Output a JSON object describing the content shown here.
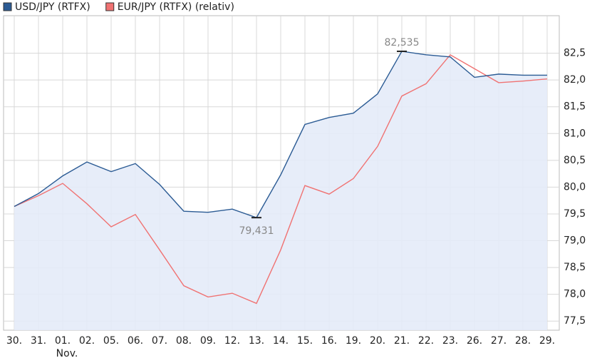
{
  "chart_data": {
    "type": "line",
    "categories": [
      "30.",
      "31.",
      "01.",
      "02.",
      "05.",
      "06.",
      "07.",
      "08.",
      "09.",
      "12.",
      "13.",
      "14.",
      "15.",
      "16.",
      "19.",
      "20.",
      "21.",
      "22.",
      "23.",
      "26.",
      "27.",
      "28.",
      "29."
    ],
    "x_sublabels": [
      null,
      null,
      "Nov.",
      null,
      null,
      null,
      null,
      null,
      null,
      null,
      null,
      null,
      null,
      null,
      null,
      null,
      null,
      null,
      null,
      null,
      null,
      null,
      null
    ],
    "series": [
      {
        "name": "USD/JPY (RTFX)",
        "color": "#2b5b94",
        "fill": "#e4ebf8",
        "values": [
          79.64,
          79.88,
          80.21,
          80.47,
          80.29,
          80.44,
          80.05,
          79.55,
          79.53,
          79.59,
          79.431,
          80.23,
          81.17,
          81.3,
          81.38,
          81.74,
          82.535,
          82.47,
          82.43,
          82.05,
          82.11,
          82.09,
          82.09
        ]
      },
      {
        "name": "EUR/JPY (RTFX) (relativ)",
        "color": "#f07272",
        "values": [
          79.64,
          79.84,
          80.07,
          79.69,
          79.26,
          79.49,
          78.83,
          78.16,
          77.95,
          78.02,
          77.83,
          78.83,
          80.03,
          79.87,
          80.16,
          80.76,
          81.7,
          81.93,
          82.47,
          82.21,
          81.95,
          81.98,
          82.02
        ]
      }
    ],
    "annotations": [
      {
        "label": "82,535",
        "value": 82.535,
        "position": "above"
      },
      {
        "label": "79,431",
        "value": 79.431,
        "position": "below"
      }
    ],
    "ylim": [
      77.33,
      83.2
    ],
    "yticks": [
      {
        "value": 77.5,
        "label": "77,5"
      },
      {
        "value": 78,
        "label": "78,0"
      },
      {
        "value": 78.5,
        "label": "78,5"
      },
      {
        "value": 79,
        "label": "79,0"
      },
      {
        "value": 79.5,
        "label": "79,5"
      },
      {
        "value": 80,
        "label": "80,0"
      },
      {
        "value": 80.5,
        "label": "80,5"
      },
      {
        "value": 81,
        "label": "81,0"
      },
      {
        "value": 81.5,
        "label": "81,5"
      },
      {
        "value": 82,
        "label": "82,0"
      },
      {
        "value": 82.5,
        "label": "82,5"
      }
    ],
    "y_axis_side": "right",
    "grid": true,
    "legend": "top-left"
  }
}
